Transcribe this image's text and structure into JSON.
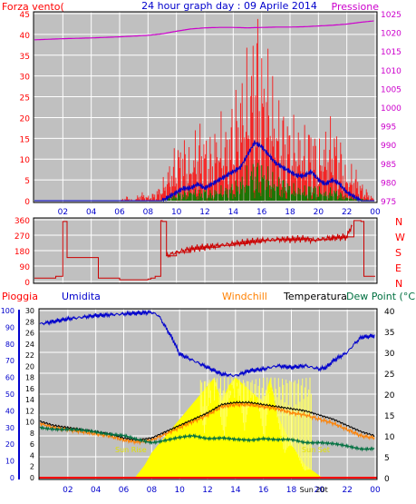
{
  "colors": {
    "wind": "#ff0000",
    "gust": "#0000c8",
    "pressure": "#cc00cc",
    "direction": "#cc0000",
    "rain": "#ff0000",
    "humidity": "#0000cc",
    "windchill": "#ff8000",
    "temperature": "#000000",
    "dewpoint": "#007040",
    "sun": "#ffff00",
    "sun_label": "#e0e000",
    "panel_bg": "#c0c0c0",
    "grid": "#ffffff"
  },
  "panels": {
    "wind": {
      "title_left": "Forza vento(",
      "title_center": "24 hour graph day : 09 Aprile 2014",
      "title_right": "Pressione",
      "left_ticks": [
        "0",
        "5",
        "10",
        "15",
        "20",
        "25",
        "30",
        "35",
        "40",
        "45"
      ],
      "right_ticks": [
        "975",
        "980",
        "985",
        "990",
        "995",
        "1000",
        "1005",
        "1010",
        "1015",
        "1020",
        "1025"
      ]
    },
    "direction": {
      "left_ticks": [
        "0",
        "90",
        "180",
        "270",
        "360"
      ],
      "compass": [
        "N",
        "W",
        "S",
        "E",
        "N"
      ]
    },
    "weather": {
      "label_rain": "Pioggia",
      "label_humidity": "Umidita",
      "label_windchill": "Windchill",
      "label_temperature": "Temperatura",
      "label_dewpoint": "Dew Point (°C",
      "rain_ticks": [
        "0",
        "2",
        "4",
        "6",
        "8",
        "10",
        "12",
        "14",
        "16",
        "18",
        "20",
        "22",
        "24",
        "26",
        "28",
        "30"
      ],
      "humidity_ticks": [
        "0",
        "10",
        "20",
        "30",
        "40",
        "50",
        "60",
        "70",
        "80",
        "90",
        "100"
      ],
      "temp_ticks": [
        "0",
        "5",
        "10",
        "15",
        "20",
        "25",
        "30",
        "35",
        "40"
      ],
      "sun_rise": "Sun Rise",
      "sun_set": "Sun Set",
      "sun_set_hour_label": "Sun 20t"
    },
    "x_ticks": [
      "02",
      "04",
      "06",
      "08",
      "10",
      "12",
      "14",
      "16",
      "18",
      "20",
      "22",
      "00"
    ]
  },
  "chart_data": [
    {
      "type": "line",
      "title": "24 hour graph day : 09 Aprile 2014",
      "ylabel": "Forza vento(",
      "y2label": "Pressione",
      "ylim": [
        0,
        45
      ],
      "y2lim": [
        975,
        1025
      ],
      "x_hours": [
        0,
        24
      ],
      "series": [
        {
          "axis": "left",
          "style": "bars",
          "x": [
            0.0,
            6.0,
            6.5,
            7.0,
            7.5,
            8.0,
            8.5,
            9.0,
            9.5,
            10.0,
            10.5,
            11.0,
            11.5,
            12.0,
            12.5,
            13.0,
            13.5,
            14.0,
            14.5,
            15.0,
            15.5,
            15.8,
            16.0,
            16.3,
            16.5,
            17.0,
            17.5,
            18.0,
            18.5,
            19.0,
            19.5,
            20.0,
            20.5,
            21.0,
            21.5,
            22.0,
            22.5,
            23.0,
            23.5,
            24.0
          ],
          "y": [
            0,
            0,
            1,
            0,
            2,
            1,
            2,
            4,
            8,
            12,
            14,
            10,
            17,
            15,
            13,
            18,
            16,
            22,
            26,
            30,
            38,
            42,
            32,
            35,
            30,
            22,
            20,
            18,
            16,
            15,
            18,
            12,
            15,
            18,
            14,
            6,
            8,
            4,
            2,
            0
          ]
        },
        {
          "axis": "left",
          "style": "line",
          "x": [
            0.0,
            9.0,
            9.5,
            10.0,
            10.5,
            11.0,
            11.5,
            12.0,
            12.5,
            13.0,
            13.5,
            14.0,
            14.5,
            15.0,
            15.5,
            16.0,
            16.5,
            17.0,
            17.5,
            18.0,
            18.5,
            19.0,
            19.5,
            20.0,
            20.5,
            21.0,
            21.5,
            22.0,
            22.5,
            23.0,
            24.0
          ],
          "y": [
            0,
            0,
            1,
            2,
            3,
            3,
            4,
            3,
            4,
            5,
            6,
            7,
            8,
            11,
            14,
            13,
            11,
            9,
            8,
            7,
            6,
            6,
            7,
            5,
            4,
            5,
            4,
            2,
            1,
            0,
            0
          ]
        },
        {
          "axis": "left",
          "style": "bars",
          "x": [
            0.0,
            9.0,
            9.5,
            10.0,
            10.5,
            11.0,
            11.5,
            12.0,
            12.5,
            13.0,
            13.5,
            14.0,
            14.5,
            15.0,
            15.5,
            16.0,
            16.5,
            17.0,
            17.5,
            18.0,
            18.5,
            19.0,
            19.5,
            20.0,
            20.5,
            21.0,
            22.0,
            24.0
          ],
          "y": [
            0,
            0,
            1,
            2,
            2,
            3,
            2,
            3,
            2,
            3,
            3,
            4,
            5,
            7,
            9,
            8,
            7,
            5,
            5,
            4,
            3,
            3,
            4,
            3,
            2,
            3,
            1,
            0
          ]
        },
        {
          "axis": "right",
          "style": "line",
          "x": [
            0.0,
            2.0,
            4.0,
            6.0,
            8.0,
            9.0,
            10.0,
            11.0,
            12.0,
            13.0,
            14.0,
            15.0,
            16.0,
            17.0,
            18.0,
            19.0,
            20.0,
            21.0,
            22.0,
            23.0,
            24.0
          ],
          "y": [
            1018.0,
            1018.3,
            1018.5,
            1018.8,
            1019.2,
            1019.6,
            1020.3,
            1020.9,
            1021.2,
            1021.3,
            1021.3,
            1021.2,
            1021.3,
            1021.4,
            1021.4,
            1021.5,
            1021.7,
            1021.9,
            1022.2,
            1022.7,
            1023.1
          ]
        }
      ]
    },
    {
      "type": "line",
      "ylim": [
        0,
        360
      ],
      "x_hours": [
        0,
        24
      ],
      "series": [
        {
          "style": "step",
          "x": [
            0.0,
            1.0,
            1.5,
            2.0,
            2.3,
            4.0,
            4.5,
            6.0,
            8.0,
            8.2,
            8.5,
            8.9,
            9.0,
            9.3,
            10.0,
            11.0,
            12.0,
            13.0,
            14.0,
            15.0,
            16.0,
            17.0,
            18.0,
            19.0,
            19.5,
            20.0,
            21.0,
            22.0,
            22.5,
            23.0,
            23.2,
            24.0
          ],
          "y": [
            20,
            20,
            30,
            350,
            140,
            140,
            20,
            10,
            15,
            20,
            30,
            355,
            350,
            150,
            170,
            190,
            200,
            210,
            220,
            230,
            240,
            245,
            245,
            250,
            240,
            245,
            255,
            260,
            355,
            350,
            30,
            30
          ]
        }
      ]
    },
    {
      "type": "line",
      "ylabel": "Pioggia",
      "y2label": "Dew Point (°C",
      "ylim": [
        0,
        30
      ],
      "humidity_lim": [
        0,
        100
      ],
      "temp_lim": [
        0,
        40
      ],
      "x_hours": [
        0,
        24
      ],
      "series": [
        {
          "axis": "humidity",
          "style": "line",
          "x": [
            0.0,
            2.0,
            4.0,
            6.0,
            8.0,
            8.5,
            9.0,
            9.5,
            10.0,
            11.0,
            12.0,
            13.0,
            14.0,
            15.0,
            16.0,
            17.0,
            18.0,
            19.0,
            20.0,
            20.5,
            21.0,
            22.0,
            22.5,
            23.0,
            24.0
          ],
          "y": [
            92,
            95,
            97,
            98,
            99,
            97,
            90,
            83,
            74,
            70,
            66,
            62,
            61,
            64,
            65,
            67,
            66,
            67,
            65,
            66,
            70,
            75,
            80,
            84,
            85
          ]
        },
        {
          "axis": "temp",
          "style": "line",
          "x": [
            0.0,
            1.0,
            2.0,
            3.0,
            4.0,
            5.0,
            6.0,
            7.0,
            8.0,
            9.0,
            10.0,
            11.0,
            12.0,
            13.0,
            14.0,
            15.0,
            16.0,
            17.0,
            18.0,
            19.0,
            20.0,
            21.0,
            22.0,
            23.0,
            24.0
          ],
          "y": [
            13.5,
            12.5,
            12.0,
            11.5,
            11.0,
            10.5,
            9.5,
            9.0,
            9.5,
            11.0,
            12.5,
            14.0,
            15.5,
            17.5,
            18.0,
            18.0,
            17.5,
            17.0,
            16.5,
            16.0,
            15.0,
            14.0,
            12.5,
            11.0,
            10.0
          ]
        },
        {
          "axis": "temp",
          "style": "line",
          "x": [
            0.0,
            1.0,
            2.0,
            3.0,
            4.0,
            5.0,
            6.0,
            7.0,
            8.0,
            9.0,
            10.0,
            11.0,
            12.0,
            13.0,
            14.0,
            15.0,
            16.0,
            17.0,
            18.0,
            19.0,
            20.0,
            21.0,
            22.0,
            23.0,
            24.0
          ],
          "y": [
            13.0,
            12.0,
            11.5,
            11.0,
            10.5,
            10.0,
            9.0,
            8.5,
            9.0,
            10.5,
            12.0,
            13.5,
            15.0,
            17.0,
            17.5,
            17.5,
            17.0,
            16.5,
            15.5,
            15.0,
            14.0,
            13.0,
            11.5,
            10.0,
            9.5
          ]
        },
        {
          "axis": "temp",
          "style": "line",
          "x": [
            0.0,
            2.0,
            4.0,
            6.0,
            7.0,
            8.0,
            9.0,
            10.0,
            11.0,
            12.0,
            13.0,
            14.0,
            15.0,
            16.0,
            17.0,
            18.0,
            19.0,
            20.0,
            21.0,
            22.0,
            23.0,
            24.0
          ],
          "y": [
            12.0,
            11.5,
            11.0,
            10.0,
            9.0,
            8.5,
            9.0,
            9.5,
            10.0,
            9.5,
            9.5,
            9.0,
            9.0,
            9.5,
            9.0,
            9.0,
            8.5,
            8.5,
            8.0,
            7.5,
            7.0,
            7.0
          ]
        },
        {
          "axis": "temp",
          "style": "area",
          "x": [
            6.8,
            7.5,
            8.0,
            9.0,
            10.0,
            11.0,
            12.0,
            12.5,
            13.0,
            13.5,
            14.0,
            15.0,
            16.0,
            16.5,
            17.0,
            18.0,
            19.0,
            19.8,
            20.2
          ],
          "y": [
            0.0,
            3.0,
            6.0,
            10.0,
            14.0,
            18.0,
            22.0,
            24.0,
            18.0,
            22.0,
            24.0,
            21.0,
            18.0,
            24.0,
            15.0,
            8.0,
            3.0,
            1.0,
            0.0
          ]
        },
        {
          "axis": "left",
          "style": "line",
          "x": [
            0.0,
            24.0
          ],
          "y": [
            0,
            0
          ]
        }
      ]
    }
  ]
}
